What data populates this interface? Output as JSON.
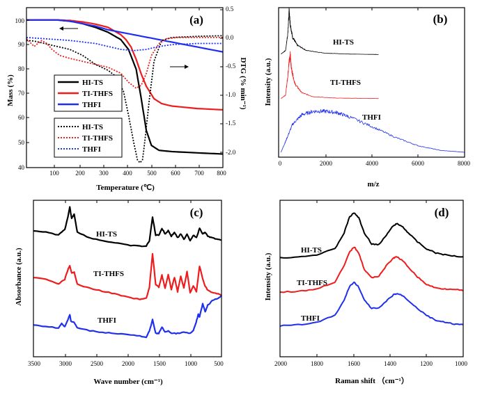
{
  "colors": {
    "black": "#000000",
    "red": "#ee1c1c",
    "blue": "#1f2fee"
  },
  "chart_data": [
    {
      "id": "a",
      "type": "line",
      "panel_label": "(a)",
      "xlabel": "Temperature (℃)",
      "ylabel": "Mass (%)",
      "y2label": "DTG (% min⁻¹)",
      "xlim": [
        30,
        800
      ],
      "ylim": [
        40,
        105
      ],
      "y2lim": [
        -2.18,
        0.5
      ],
      "xticks": [
        "100",
        "200",
        "300",
        "400",
        "500",
        "600",
        "700",
        "800"
      ],
      "yticks": [
        "40",
        "50",
        "60",
        "70",
        "80",
        "90",
        "100"
      ],
      "y2ticks": [
        "-2.0",
        "-1.5",
        "-1.0",
        "-0.5",
        "0.0",
        "0.5"
      ],
      "legend_mass": [
        "HI-TS",
        "TI-THFS",
        "THFI"
      ],
      "legend_dtg": [
        "HI-TS",
        "TI-THFS",
        "THFI"
      ],
      "series": [
        {
          "name": "HI-TS",
          "kind": "mass",
          "axis": "left",
          "x": [
            30,
            100,
            150,
            200,
            250,
            300,
            350,
            400,
            430,
            460,
            480,
            500,
            520,
            550,
            600,
            700,
            800
          ],
          "y": [
            100,
            100,
            100,
            99.5,
            98.5,
            97,
            95,
            92,
            88,
            80,
            68,
            55,
            49,
            47,
            46.5,
            46,
            45.5
          ]
        },
        {
          "name": "TI-THFS",
          "kind": "mass",
          "axis": "left",
          "x": [
            30,
            100,
            150,
            200,
            250,
            300,
            350,
            400,
            420,
            440,
            460,
            480,
            500,
            530,
            560,
            600,
            700,
            800
          ],
          "y": [
            100,
            100,
            100,
            99.8,
            99.2,
            98.3,
            97,
            94,
            92,
            89,
            84,
            78,
            73,
            68,
            66,
            65,
            64,
            63.5
          ]
        },
        {
          "name": "THFI",
          "kind": "mass",
          "axis": "left",
          "x": [
            30,
            100,
            150,
            200,
            250,
            300,
            350,
            400,
            450,
            500,
            550,
            600,
            650,
            700,
            800
          ],
          "y": [
            100,
            100,
            100,
            99.5,
            98.5,
            97.5,
            96,
            95,
            94,
            93,
            92,
            91,
            90,
            89,
            87
          ]
        },
        {
          "name": "HI-TS",
          "kind": "dtg",
          "axis": "right",
          "x": [
            30,
            60,
            100,
            150,
            200,
            250,
            300,
            350,
            380,
            410,
            430,
            450,
            465,
            475,
            485,
            495,
            510,
            530,
            560,
            600,
            700,
            800
          ],
          "y": [
            -0.05,
            -0.06,
            -0.1,
            -0.15,
            -0.2,
            -0.3,
            -0.45,
            -0.55,
            -0.65,
            -0.9,
            -1.3,
            -1.75,
            -2.05,
            -2.1,
            -2.05,
            -1.7,
            -1.1,
            -0.4,
            -0.05,
            0.0,
            0.02,
            0.03
          ]
        },
        {
          "name": "TI-THFS",
          "kind": "dtg",
          "axis": "right",
          "x": [
            30,
            60,
            90,
            110,
            130,
            160,
            200,
            250,
            300,
            350,
            400,
            430,
            460,
            480,
            500,
            520,
            550,
            580,
            620,
            700,
            800
          ],
          "y": [
            -0.02,
            -0.15,
            -0.05,
            -0.1,
            -0.2,
            -0.3,
            -0.35,
            -0.4,
            -0.45,
            -0.5,
            -0.6,
            -0.75,
            -0.85,
            -0.8,
            -0.6,
            -0.3,
            -0.1,
            -0.02,
            0.0,
            0.0,
            0.0
          ]
        },
        {
          "name": "THFI",
          "kind": "dtg",
          "axis": "right",
          "x": [
            30,
            100,
            200,
            300,
            350,
            400,
            450,
            500,
            550,
            600,
            700,
            800
          ],
          "y": [
            0.0,
            -0.02,
            -0.05,
            -0.1,
            -0.15,
            -0.2,
            -0.22,
            -0.2,
            -0.15,
            -0.12,
            -0.1,
            -0.1
          ]
        }
      ]
    },
    {
      "id": "b",
      "type": "line",
      "panel_label": "(b)",
      "xlabel": "m/z",
      "ylabel": "Intensity (a.u.)",
      "xlim": [
        0,
        8000
      ],
      "xticks": [
        "0",
        "2000",
        "4000",
        "6000",
        "8000"
      ],
      "series": [
        {
          "name": "HI-TS",
          "x": [
            100,
            300,
            400,
            450,
            500,
            600,
            800,
            1200,
            2000,
            3000,
            4300
          ],
          "y": [
            0.02,
            0.1,
            0.5,
            1.0,
            0.7,
            0.4,
            0.22,
            0.1,
            0.04,
            0.02,
            0.01
          ]
        },
        {
          "name": "TI-THFS",
          "x": [
            100,
            300,
            400,
            450,
            500,
            550,
            700,
            1000,
            1500,
            2500,
            4300
          ],
          "y": [
            0.02,
            0.1,
            0.55,
            0.85,
            1.0,
            0.7,
            0.35,
            0.15,
            0.06,
            0.03,
            0.02
          ]
        },
        {
          "name": "THFI",
          "x": [
            100,
            300,
            600,
            1000,
            1500,
            2000,
            2500,
            3000,
            4000,
            5000,
            6000,
            7000,
            8000
          ],
          "y": [
            0.05,
            0.3,
            0.7,
            0.92,
            1.0,
            1.0,
            0.97,
            0.88,
            0.65,
            0.4,
            0.2,
            0.09,
            0.05
          ]
        }
      ]
    },
    {
      "id": "c",
      "type": "line",
      "panel_label": "(c)",
      "xlabel": "Wave number (cm⁻¹)",
      "ylabel": "Absorbance (a.u.)",
      "xlim": [
        3500,
        500
      ],
      "xticks": [
        "3500",
        "3000",
        "2500",
        "2000",
        "1500",
        "1000",
        "500"
      ],
      "series": [
        {
          "name": "HI-TS",
          "x": [
            3500,
            3300,
            3100,
            3000,
            2950,
            2920,
            2890,
            2850,
            2800,
            2600,
            2400,
            2200,
            2000,
            1800,
            1700,
            1650,
            1600,
            1550,
            1500,
            1450,
            1400,
            1350,
            1300,
            1250,
            1200,
            1150,
            1100,
            1050,
            1000,
            950,
            900,
            850,
            800,
            760,
            720,
            650,
            550,
            500
          ],
          "y": [
            0.58,
            0.55,
            0.5,
            0.6,
            0.82,
            1.0,
            0.8,
            0.88,
            0.55,
            0.45,
            0.4,
            0.36,
            0.32,
            0.3,
            0.3,
            0.4,
            0.82,
            0.5,
            0.5,
            0.62,
            0.52,
            0.58,
            0.48,
            0.55,
            0.45,
            0.52,
            0.42,
            0.52,
            0.4,
            0.5,
            0.45,
            0.62,
            0.52,
            0.55,
            0.48,
            0.45,
            0.42,
            0.4
          ]
        },
        {
          "name": "TI-THFS",
          "x": [
            3500,
            3300,
            3100,
            3000,
            2950,
            2920,
            2890,
            2850,
            2800,
            2600,
            2400,
            2200,
            2000,
            1800,
            1700,
            1650,
            1600,
            1550,
            1500,
            1450,
            1400,
            1350,
            1300,
            1250,
            1200,
            1150,
            1100,
            1050,
            1000,
            950,
            900,
            850,
            800,
            760,
            720,
            650,
            550,
            500
          ],
          "y": [
            0.58,
            0.54,
            0.46,
            0.54,
            0.72,
            0.78,
            0.65,
            0.68,
            0.45,
            0.38,
            0.33,
            0.28,
            0.22,
            0.18,
            0.2,
            0.4,
            1.0,
            0.45,
            0.4,
            0.62,
            0.38,
            0.62,
            0.36,
            0.58,
            0.32,
            0.6,
            0.38,
            0.68,
            0.3,
            0.42,
            0.32,
            0.78,
            0.55,
            0.42,
            0.35,
            0.3,
            0.28,
            0.26
          ]
        },
        {
          "name": "THFI",
          "x": [
            3500,
            3300,
            3100,
            3050,
            3000,
            2950,
            2920,
            2900,
            2850,
            2800,
            2600,
            2400,
            2200,
            2000,
            1800,
            1700,
            1650,
            1600,
            1550,
            1500,
            1450,
            1400,
            1350,
            1300,
            1200,
            1100,
            1000,
            950,
            920,
            900,
            870,
            850,
            800,
            760,
            720,
            650,
            550,
            500
          ],
          "y": [
            0.35,
            0.33,
            0.3,
            0.38,
            0.32,
            0.45,
            0.55,
            0.42,
            0.4,
            0.3,
            0.25,
            0.22,
            0.2,
            0.18,
            0.15,
            0.12,
            0.25,
            0.45,
            0.2,
            0.2,
            0.32,
            0.22,
            0.25,
            0.2,
            0.2,
            0.22,
            0.2,
            0.25,
            0.35,
            0.42,
            0.55,
            0.5,
            0.75,
            0.6,
            0.72,
            0.8,
            0.85,
            0.9
          ]
        }
      ]
    },
    {
      "id": "d",
      "type": "line",
      "panel_label": "(d)",
      "xlabel": "Raman shift （cm⁻¹）",
      "ylabel": "Intensity (a.u.)",
      "xlim": [
        2000,
        1000
      ],
      "xticks": [
        "2000",
        "1800",
        "1600",
        "1400",
        "1200",
        "1000"
      ],
      "series": [
        {
          "name": "HI-TS",
          "x": [
            2000,
            1900,
            1800,
            1700,
            1650,
            1620,
            1595,
            1570,
            1540,
            1500,
            1460,
            1420,
            1380,
            1360,
            1330,
            1300,
            1250,
            1200,
            1150,
            1100,
            1050,
            1000
          ],
          "y": [
            0.1,
            0.12,
            0.16,
            0.28,
            0.6,
            0.92,
            1.0,
            0.9,
            0.6,
            0.38,
            0.36,
            0.55,
            0.75,
            0.78,
            0.72,
            0.6,
            0.42,
            0.28,
            0.2,
            0.16,
            0.14,
            0.12
          ]
        },
        {
          "name": "TI-THFS",
          "x": [
            2000,
            1900,
            1800,
            1700,
            1650,
            1620,
            1595,
            1570,
            1540,
            1500,
            1460,
            1420,
            1380,
            1360,
            1330,
            1300,
            1250,
            1200,
            1150,
            1100,
            1050,
            1000
          ],
          "y": [
            0.1,
            0.11,
            0.16,
            0.3,
            0.62,
            0.9,
            1.0,
            0.88,
            0.55,
            0.38,
            0.42,
            0.62,
            0.78,
            0.8,
            0.72,
            0.6,
            0.4,
            0.25,
            0.18,
            0.16,
            0.16,
            0.12
          ]
        },
        {
          "name": "THFI",
          "x": [
            2000,
            1900,
            1800,
            1700,
            1650,
            1620,
            1595,
            1570,
            1540,
            1500,
            1460,
            1420,
            1380,
            1360,
            1330,
            1300,
            1250,
            1200,
            1150,
            1100,
            1050,
            1000
          ],
          "y": [
            0.08,
            0.1,
            0.15,
            0.3,
            0.62,
            0.92,
            1.0,
            0.9,
            0.62,
            0.45,
            0.45,
            0.6,
            0.74,
            0.76,
            0.72,
            0.62,
            0.45,
            0.3,
            0.2,
            0.15,
            0.12,
            0.1
          ]
        }
      ]
    }
  ]
}
